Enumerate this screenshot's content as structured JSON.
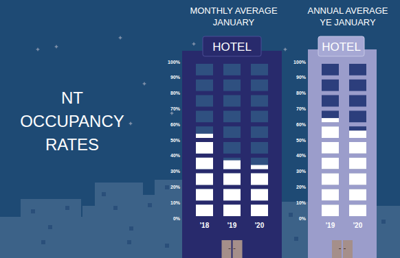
{
  "title": "NT OCCUPANCY RATES",
  "chart_data": [
    {
      "type": "bar",
      "title": "MONTHLY AVERAGE JANUARY",
      "annotations": [
        "HOTEL"
      ],
      "categories": [
        "'18",
        "'19",
        "'20"
      ],
      "values": [
        54,
        37,
        34
      ],
      "color": "#ffffff",
      "ylim": [
        0,
        100
      ],
      "yticks": [
        {
          "value": 0,
          "label": "0%"
        },
        {
          "value": 10,
          "label": "10%"
        },
        {
          "value": 20,
          "label": "20%"
        },
        {
          "value": 30,
          "label": "30%"
        },
        {
          "value": 40,
          "label": "40%"
        },
        {
          "value": 50,
          "label": "50%"
        },
        {
          "value": 60,
          "label": "60%"
        },
        {
          "value": 70,
          "label": "70%"
        },
        {
          "value": 80,
          "label": "80%"
        },
        {
          "value": 90,
          "label": "90%"
        },
        {
          "value": 100,
          "label": "100%"
        }
      ]
    },
    {
      "type": "bar",
      "title": "ANNUAL AVERAGE YE JANUARY",
      "annotations": [
        "HOTEL"
      ],
      "categories": [
        "'19",
        "'20"
      ],
      "values": [
        64,
        56
      ],
      "color": "#ffffff",
      "ylim": [
        0,
        100
      ],
      "yticks": [
        {
          "value": 0,
          "label": "0%"
        },
        {
          "value": 10,
          "label": "10%"
        },
        {
          "value": 20,
          "label": "20%"
        },
        {
          "value": 30,
          "label": "30%"
        },
        {
          "value": 40,
          "label": "40%"
        },
        {
          "value": 50,
          "label": "50%"
        },
        {
          "value": 60,
          "label": "60%"
        },
        {
          "value": 70,
          "label": "70%"
        },
        {
          "value": 80,
          "label": "80%"
        },
        {
          "value": 90,
          "label": "90%"
        },
        {
          "value": 100,
          "label": "100%"
        }
      ]
    }
  ]
}
